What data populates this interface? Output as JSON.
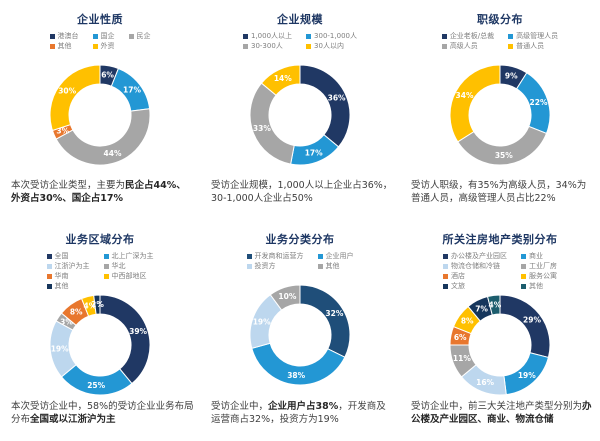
{
  "page": {
    "background": "#FFFFFF",
    "title_color": "#1F3864",
    "legend_text_color": "#7F7F7F",
    "label_text_color": "#FFFFFF"
  },
  "chart_data": [
    {
      "type": "donut",
      "title": "企业性质",
      "legend_columns": 3,
      "legend_position": "top",
      "hole": 0.62,
      "series": [
        {
          "label": "港澳台",
          "value": 6,
          "color": "#203864"
        },
        {
          "label": "国企",
          "value": 17,
          "color": "#2397D4"
        },
        {
          "label": "民企",
          "value": 44,
          "color": "#A6A6A6"
        },
        {
          "label": "其他",
          "value": 3,
          "color": "#E8772E"
        },
        {
          "label": "外资",
          "value": 30,
          "color": "#FFC000"
        }
      ],
      "description": [
        {
          "text": "本次受访企业类型，主要为",
          "bold": false
        },
        {
          "text": "民企占44%、外资占30%、国企占17%",
          "bold": true
        }
      ]
    },
    {
      "type": "donut",
      "title": "企业规模",
      "legend_columns": 2,
      "legend_position": "top",
      "hole": 0.62,
      "series": [
        {
          "label": "1,000人以上",
          "value": 36,
          "color": "#203864"
        },
        {
          "label": "300-1,000人",
          "value": 17,
          "color": "#2397D4"
        },
        {
          "label": "30-300人",
          "value": 33,
          "color": "#A6A6A6"
        },
        {
          "label": "30人以内",
          "value": 14,
          "color": "#FFC000"
        }
      ],
      "description": [
        {
          "text": "受访企业规模，1,000人以上企业占36%，30-1,000人企业占50%",
          "bold": false
        }
      ]
    },
    {
      "type": "donut",
      "title": "职级分布",
      "legend_columns": 2,
      "legend_position": "top",
      "hole": 0.62,
      "series": [
        {
          "label": "企业老板/总裁",
          "value": 9,
          "color": "#203864"
        },
        {
          "label": "高级管理人员",
          "value": 22,
          "color": "#2397D4"
        },
        {
          "label": "高级人员",
          "value": 35,
          "color": "#A6A6A6"
        },
        {
          "label": "普通人员",
          "value": 34,
          "color": "#FFC000"
        }
      ],
      "description": [
        {
          "text": "受访人职级，有35%为高级人员，34%为普通人员，高级管理人员占比22%",
          "bold": false
        }
      ]
    },
    {
      "type": "donut",
      "title": "业务区域分布",
      "legend_columns": 2,
      "legend_position": "top",
      "hole": 0.62,
      "series": [
        {
          "label": "全国",
          "value": 39,
          "color": "#203864"
        },
        {
          "label": "北上广深为主",
          "value": 25,
          "color": "#2397D4"
        },
        {
          "label": "江浙沪为主",
          "value": 19,
          "color": "#BDD7EE"
        },
        {
          "label": "华北",
          "value": 3,
          "color": "#A6A6A6"
        },
        {
          "label": "华南",
          "value": 8,
          "color": "#E8772E"
        },
        {
          "label": "中西部地区",
          "value": 4,
          "color": "#FFC000"
        },
        {
          "label": "其他",
          "value": 2,
          "color": "#16365C"
        }
      ],
      "description": [
        {
          "text": "本次受访企业中，58%的受访企业业务布局分布",
          "bold": false
        },
        {
          "text": "全国或以江浙沪为主",
          "bold": true
        }
      ]
    },
    {
      "type": "donut",
      "title": "业务分类分布",
      "legend_columns": 2,
      "legend_position": "top",
      "hole": 0.62,
      "series": [
        {
          "label": "开发商和运营方",
          "value": 32,
          "color": "#1F4E79"
        },
        {
          "label": "企业用户",
          "value": 38,
          "color": "#2397D4"
        },
        {
          "label": "投资方",
          "value": 19,
          "color": "#BDD7EE"
        },
        {
          "label": "其他",
          "value": 10,
          "color": "#A6A6A6"
        }
      ],
      "description": [
        {
          "text": "受访企业中，",
          "bold": false
        },
        {
          "text": "企业用户占38%",
          "bold": true
        },
        {
          "text": "，开发商及运营商占32%，投资方为19%",
          "bold": false
        }
      ]
    },
    {
      "type": "donut",
      "title": "所关注房地产类别分布",
      "legend_columns": 2,
      "legend_position": "top",
      "hole": 0.62,
      "series": [
        {
          "label": "办公楼及产业园区",
          "value": 29,
          "color": "#203864"
        },
        {
          "label": "商业",
          "value": 19,
          "color": "#2397D4"
        },
        {
          "label": "物流仓储和冷链",
          "value": 16,
          "color": "#BDD7EE"
        },
        {
          "label": "工业厂房",
          "value": 11,
          "color": "#A6A6A6"
        },
        {
          "label": "酒店",
          "value": 6,
          "color": "#E8772E"
        },
        {
          "label": "服务公寓",
          "value": 8,
          "color": "#FFC000"
        },
        {
          "label": "文旅",
          "value": 7,
          "color": "#16365C"
        },
        {
          "label": "其他",
          "value": 4,
          "color": "#1C5D6D"
        }
      ],
      "description": [
        {
          "text": "受访企业中，前三大关注地产类型分别为",
          "bold": false
        },
        {
          "text": "办公楼及产业园区、商业、物流仓储",
          "bold": true
        }
      ]
    }
  ]
}
